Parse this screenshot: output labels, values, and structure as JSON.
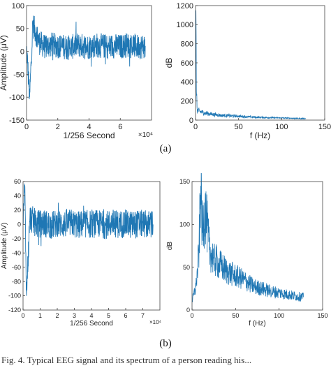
{
  "chart_data": [
    {
      "id": "a-time",
      "type": "line",
      "xlabel": "1/256 Second",
      "ylabel": "Amplitude (μV)",
      "xlim": [
        0,
        80000
      ],
      "ylim": [
        -150,
        100
      ],
      "x_ticks": [
        0,
        20000,
        40000,
        60000
      ],
      "x_tick_labels": [
        "0",
        "2",
        "4",
        "6"
      ],
      "y_ticks": [
        -150,
        -100,
        -50,
        0,
        50,
        100
      ],
      "x_multiplier": "×10⁴",
      "color": "#1f77b4",
      "series": [
        {
          "x": [
            0,
            2000,
            4000,
            8000,
            12000,
            16000,
            20000,
            24000,
            28000,
            32000,
            36000,
            40000,
            44000,
            48000,
            52000,
            56000,
            60000,
            64000,
            68000,
            72000,
            76000
          ],
          "y": [
            10,
            -100,
            60,
            20,
            10,
            15,
            12,
            10,
            8,
            14,
            12,
            10,
            14,
            12,
            10,
            12,
            10,
            14,
            12,
            10,
            12
          ]
        }
      ]
    },
    {
      "id": "a-spectrum",
      "type": "line",
      "xlabel": "f (Hz)",
      "ylabel": "dB",
      "xlim": [
        0,
        150
      ],
      "ylim": [
        0,
        1200
      ],
      "x_ticks": [
        0,
        50,
        100,
        150
      ],
      "y_ticks": [
        0,
        200,
        400,
        600,
        800,
        1000,
        1200
      ],
      "color": "#1f77b4",
      "series": [
        {
          "x": [
            0,
            0.5,
            1,
            2,
            5,
            10,
            20,
            30,
            50,
            70,
            90,
            110,
            128
          ],
          "y": [
            200,
            1150,
            300,
            100,
            90,
            75,
            60,
            50,
            40,
            30,
            25,
            20,
            15
          ]
        }
      ]
    },
    {
      "id": "b-time",
      "type": "line",
      "xlabel": "1/256 Second",
      "ylabel": "Amplitude (μV)",
      "xlim": [
        0,
        80000
      ],
      "ylim": [
        -120,
        60
      ],
      "x_ticks": [
        0,
        10000,
        20000,
        30000,
        40000,
        50000,
        60000,
        70000
      ],
      "x_tick_labels": [
        "0",
        "1",
        "2",
        "3",
        "4",
        "5",
        "6",
        "7"
      ],
      "y_ticks": [
        -120,
        -100,
        -80,
        -60,
        -40,
        -20,
        0,
        20,
        40,
        60
      ],
      "x_multiplier": "×10⁴",
      "color": "#1f77b4",
      "series": [
        {
          "x": [
            0,
            1000,
            2000,
            4000,
            8000,
            12000,
            16000,
            20000,
            24000,
            28000,
            32000,
            36000,
            40000,
            44000,
            48000,
            52000,
            56000,
            60000,
            64000,
            68000,
            72000,
            76000
          ],
          "y": [
            0,
            55,
            -100,
            10,
            0,
            2,
            -1,
            1,
            0,
            2,
            -1,
            1,
            0,
            1,
            -1,
            2,
            0,
            1,
            -1,
            1,
            0,
            0
          ]
        }
      ]
    },
    {
      "id": "b-spectrum",
      "type": "line",
      "xlabel": "f (Hz)",
      "ylabel": "dB",
      "xlim": [
        0,
        150
      ],
      "ylim": [
        0,
        150
      ],
      "x_ticks": [
        0,
        50,
        100,
        150
      ],
      "y_ticks": [
        0,
        50,
        100,
        150
      ],
      "color": "#1f77b4",
      "series": [
        {
          "x": [
            0,
            5,
            8,
            10,
            12,
            15,
            20,
            25,
            30,
            40,
            50,
            60,
            70,
            80,
            90,
            100,
            110,
            120,
            128
          ],
          "y": [
            10,
            30,
            70,
            145,
            90,
            120,
            70,
            60,
            55,
            45,
            40,
            35,
            28,
            25,
            22,
            20,
            18,
            16,
            15
          ]
        }
      ]
    }
  ],
  "captions": {
    "a": "(a)",
    "b": "(b)"
  },
  "footnote": "Fig. 4. Typical EEG signal and its spectrum of a person reading his..."
}
